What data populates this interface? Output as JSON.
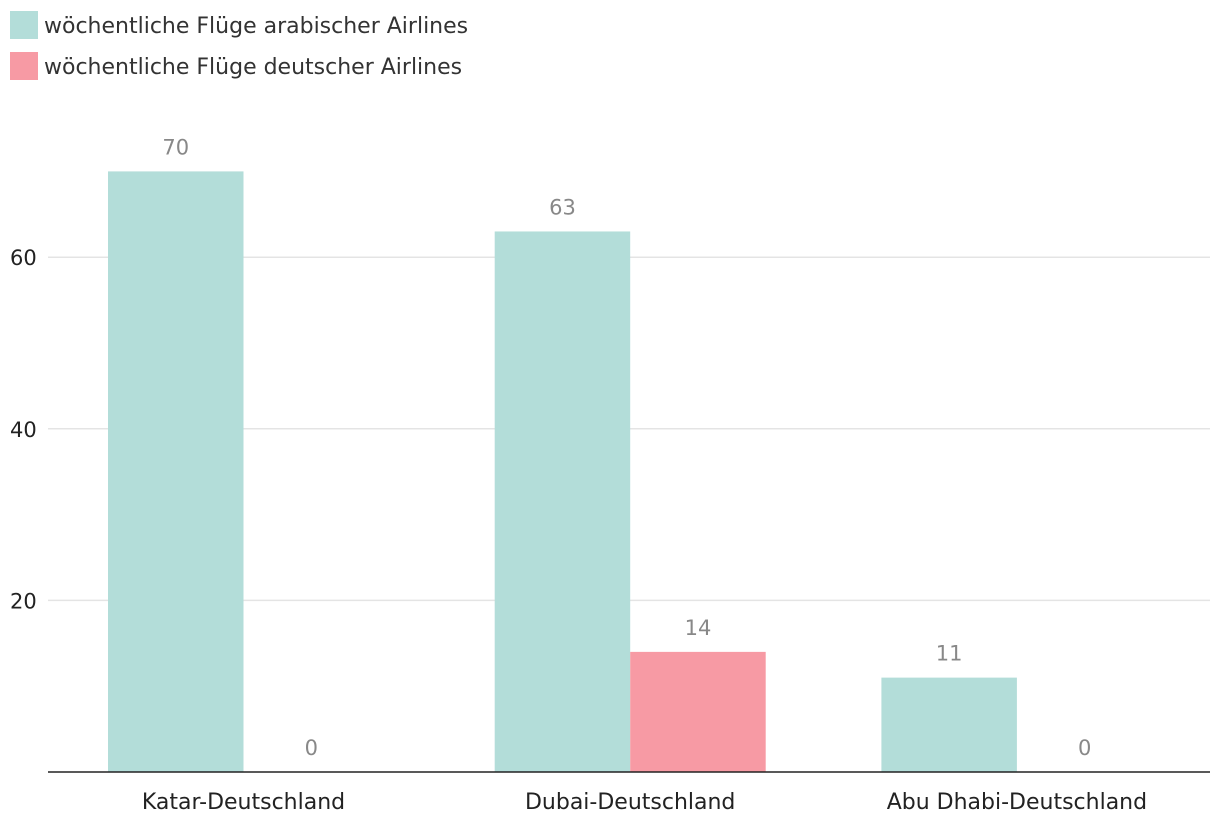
{
  "chart_data": {
    "type": "bar",
    "categories": [
      "Katar-Deutschland",
      "Dubai-Deutschland",
      "Abu Dhabi-Deutschland"
    ],
    "series": [
      {
        "name": "wöchentliche Flüge arabischer Airlines",
        "color": "#b3ddd9",
        "values": [
          70,
          63,
          11
        ]
      },
      {
        "name": "wöchentliche Flüge deutscher Airlines",
        "color": "#f79aa4",
        "values": [
          0,
          14,
          0
        ]
      }
    ],
    "title": "",
    "xlabel": "",
    "ylabel": "",
    "ylim": [
      0,
      70
    ],
    "yticks": [
      20,
      40,
      60
    ],
    "grid": true,
    "legend_position": "top-left",
    "data_labels": true
  }
}
